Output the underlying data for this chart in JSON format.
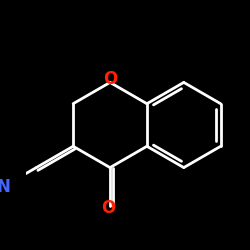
{
  "background_color": "#000000",
  "bond_color": "#ffffff",
  "N_color": "#4466ff",
  "O_color": "#ff2200",
  "N_label": "N",
  "O_label": "O",
  "line_width": 2.0,
  "dbo": 0.012,
  "font_size": 12,
  "fig_size": [
    2.5,
    2.5
  ],
  "dpi": 100,
  "bl": 0.19
}
